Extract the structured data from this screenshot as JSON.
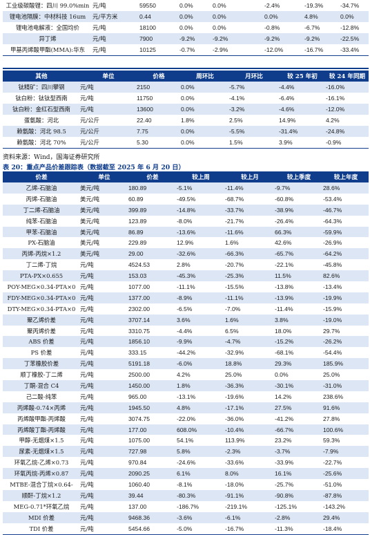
{
  "table_top": {
    "rows": [
      [
        "工业级碳酸锂：四川 99.0%min",
        "元/吨",
        "59550",
        "0.0%",
        "0.0%",
        "-2.4%",
        "-19.3%",
        "-34.7%"
      ],
      [
        "锂电池隔膜：中材科技 16um",
        "元/平方米",
        "0.44",
        "0.0%",
        "0.0%",
        "0.0%",
        "4.8%",
        "0.0%"
      ],
      [
        "锂电池电解液：全国均价",
        "元/吨",
        "18100",
        "0.0%",
        "0.0%",
        "-0.8%",
        "-6.7%",
        "-12.8%"
      ],
      [
        "异丁烯",
        "元/吨",
        "7900",
        "-9.2%",
        "-9.2%",
        "-9.2%",
        "-9.2%",
        "-22.5%"
      ],
      [
        "甲基丙烯酸甲酯(MMA):华东",
        "元/吨",
        "10125",
        "-0.7%",
        "-2.9%",
        "-12.0%",
        "-16.7%",
        "-33.4%"
      ]
    ]
  },
  "table_mid": {
    "headers": [
      "其他",
      "单位",
      "价格",
      "周环比",
      "月环比",
      "较 25 年初",
      "较 24 年同期"
    ],
    "rows": [
      [
        "钛精矿：四川攀钢",
        "元/吨",
        "2150",
        "0.0%",
        "-5.7%",
        "-4.4%",
        "-16.0%"
      ],
      [
        "钛白粉：钛钛型西南",
        "元/吨",
        "11750",
        "0.0%",
        "-4.1%",
        "-6.4%",
        "-16.1%"
      ],
      [
        "钛白粉：金红石型西南",
        "元/吨",
        "13600",
        "0.0%",
        "-3.2%",
        "-4.6%",
        "-12.0%"
      ],
      [
        "蛋氨酸：河北",
        "元/公斤",
        "22.40",
        "1.8%",
        "2.5%",
        "14.9%",
        "4.2%"
      ],
      [
        "赖氨酸：河北 98.5",
        "元/公斤",
        "7.75",
        "0.0%",
        "-5.5%",
        "-31.4%",
        "-24.8%"
      ],
      [
        "赖氨酸：河北 70%",
        "元/公斤",
        "5.30",
        "0.0%",
        "1.5%",
        "3.9%",
        "-0.9%"
      ]
    ]
  },
  "source_note": "资料来源：Wind，国海证券研究所",
  "caption": "表 20：重点产品价差跟踪表（数据截至 2025 年 6 月 20 日）",
  "table_spread": {
    "headers": [
      "价差",
      "单位",
      "价差",
      "较上周",
      "较上月",
      "较上季度",
      "较上年度"
    ],
    "rows": [
      [
        "乙烯-石脑油",
        "美元/吨",
        "180.89",
        "-5.1%",
        "-11.4%",
        "-9.7%",
        "28.6%"
      ],
      [
        "丙烯-石脑油",
        "美元/吨",
        "60.89",
        "-49.5%",
        "-68.7%",
        "-60.8%",
        "-53.4%"
      ],
      [
        "丁二烯-石脑油",
        "美元/吨",
        "399.89",
        "-14.8%",
        "-33.7%",
        "-38.9%",
        "-46.7%"
      ],
      [
        "纯苯-石脑油",
        "美元/吨",
        "123.89",
        "-8.0%",
        "-21.7%",
        "-26.4%",
        "-64.3%"
      ],
      [
        "甲苯-石脑油",
        "美元/吨",
        "86.89",
        "-13.6%",
        "-11.6%",
        "66.3%",
        "-59.9%"
      ],
      [
        "PX-石脑油",
        "美元/吨",
        "229.89",
        "12.9%",
        "1.6%",
        "42.6%",
        "-26.9%"
      ],
      [
        "丙烯-丙烷×1.2",
        "美元/吨",
        "29.00",
        "-32.6%",
        "-66.3%",
        "-65.7%",
        "-64.2%"
      ],
      [
        "丁二烯-丁烷",
        "元/吨",
        "4524.53",
        "2.8%",
        "-20.7%",
        "-22.1%",
        "-45.8%"
      ],
      [
        "PTA-PX×0.655",
        "元/吨",
        "153.03",
        "-45.3%",
        "-25.3%",
        "11.5%",
        "82.6%"
      ],
      [
        "POY-MEG×0.34-PTA×0",
        "元/吨",
        "1077.00",
        "-11.1%",
        "-15.5%",
        "-13.8%",
        "-13.4%"
      ],
      [
        "FDY-MEG×0.34-PTA×0",
        "元/吨",
        "1377.00",
        "-8.9%",
        "-11.1%",
        "-13.9%",
        "-19.9%"
      ],
      [
        "DTY-MEG×0.34-PTA×0",
        "元/吨",
        "2302.00",
        "-6.5%",
        "-7.0%",
        "-11.4%",
        "-15.9%"
      ],
      [
        "聚乙烯价差",
        "元/吨",
        "3707.14",
        "3.6%",
        "1.6%",
        "3.8%",
        "-19.0%"
      ],
      [
        "聚丙烯价差",
        "元/吨",
        "3310.75",
        "-4.4%",
        "6.5%",
        "18.0%",
        "29.7%"
      ],
      [
        "ABS 价差",
        "元/吨",
        "1856.10",
        "-9.9%",
        "-4.7%",
        "-15.2%",
        "-26.2%"
      ],
      [
        "PS 价差",
        "元/吨",
        "333.15",
        "-44.2%",
        "-32.9%",
        "-68.1%",
        "-54.4%"
      ],
      [
        "丁苯橡胶价差",
        "元/吨",
        "5191.18",
        "-6.0%",
        "18.8%",
        "29.3%",
        "185.9%"
      ],
      [
        "顺丁橡胶-丁二烯",
        "元/吨",
        "2500.00",
        "4.2%",
        "25.0%",
        "0.0%",
        "25.0%"
      ],
      [
        "丁酮-混合 C4",
        "元/吨",
        "1450.00",
        "1.8%",
        "-36.3%",
        "-30.1%",
        "-31.0%"
      ],
      [
        "己二酸-纯苯",
        "元/吨",
        "965.00",
        "-13.1%",
        "-19.6%",
        "14.2%",
        "238.6%"
      ],
      [
        "丙烯酸-0.74×丙烯",
        "元/吨",
        "1945.50",
        "4.8%",
        "-17.1%",
        "27.5%",
        "91.6%"
      ],
      [
        "丙烯酸甲酯-丙烯酸",
        "元/吨",
        "3074.75",
        "-22.0%",
        "-36.0%",
        "-41.2%",
        "27.8%"
      ],
      [
        "丙烯酸丁酯-丙烯酸",
        "元/吨",
        "177.00",
        "608.0%",
        "-10.4%",
        "-66.7%",
        "100.6%"
      ],
      [
        "甲醇-无烟煤×1.5",
        "元/吨",
        "1075.00",
        "54.1%",
        "113.9%",
        "23.2%",
        "59.3%"
      ],
      [
        "尿素-无烟煤×1.5",
        "元/吨",
        "727.98",
        "5.8%",
        "-2.3%",
        "-3.7%",
        "-7.9%"
      ],
      [
        "环氧乙烷-乙烯×0.73",
        "元/吨",
        "970.84",
        "-24.6%",
        "-33.6%",
        "-33.9%",
        "-22.7%"
      ],
      [
        "环氧丙烷-丙烯×0.87",
        "元/吨",
        "2090.25",
        "6.1%",
        "8.0%",
        "16.1%",
        "-25.6%"
      ],
      [
        "MTBE-混合丁烷×0.64-",
        "元/吨",
        "1060.40",
        "-8.1%",
        "-18.0%",
        "-25.7%",
        "-51.0%"
      ],
      [
        "顺酐-丁烷×1.2",
        "元/吨",
        "39.44",
        "-80.3%",
        "-91.1%",
        "-90.8%",
        "-87.8%"
      ],
      [
        "MEG-0.71*环氧乙烷",
        "元/吨",
        "137.00",
        "-186.7%",
        "-219.1%",
        "-125.1%",
        "-143.2%"
      ],
      [
        "MDI 价差",
        "元/吨",
        "9468.36",
        "-3.6%",
        "-6.1%",
        "-2.8%",
        "29.4%"
      ],
      [
        "TDI 价差",
        "元/吨",
        "5454.66",
        "-5.0%",
        "-16.7%",
        "-11.3%",
        "-18.4%"
      ]
    ]
  },
  "colors": {
    "header_bg": "#0f3d8c",
    "stripe": "#dce6f4"
  }
}
